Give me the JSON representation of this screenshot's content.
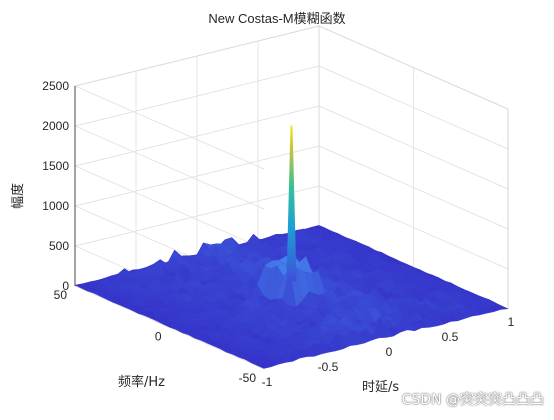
{
  "chart_data": {
    "type": "surface3d",
    "title": "New Costas-M模糊函数",
    "xlabel": "时延/s",
    "ylabel": "频率/Hz",
    "zlabel": "幅度",
    "xlim": [
      -1,
      1
    ],
    "ylim": [
      -50,
      50
    ],
    "zlim": [
      0,
      2500
    ],
    "x_ticks": [
      "-1",
      "-0.5",
      "0",
      "0.5",
      "1"
    ],
    "y_ticks": [
      "-50",
      "0",
      "50"
    ],
    "z_ticks": [
      "0",
      "500",
      "1000",
      "1500",
      "2000",
      "2500"
    ],
    "grid": true,
    "colormap": "parula",
    "peak": {
      "x": 0,
      "y": 0,
      "z": 2150
    },
    "sidelobe_level_approx": 250
  },
  "watermark": "CSDN @突突突凸凸凸"
}
